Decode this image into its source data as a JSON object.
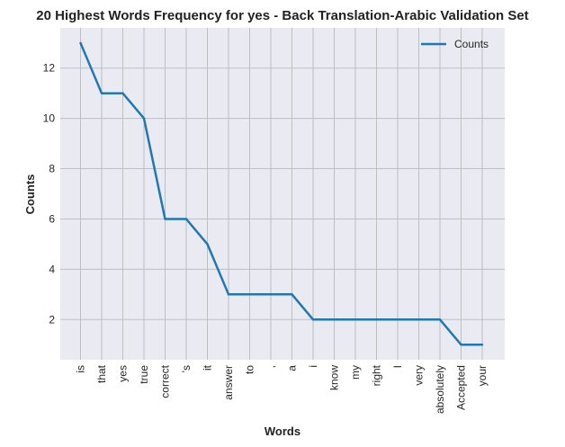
{
  "chart_data": {
    "type": "line",
    "title": "20 Highest Words Frequency for yes - Back Translation-Arabic Validation Set",
    "xlabel": "Words",
    "ylabel": "Counts",
    "categories": [
      "is",
      "that",
      "yes",
      "true",
      "correct",
      "'s",
      "it",
      "answer",
      "to",
      ",",
      "a",
      "i",
      "know",
      "my",
      "right",
      "I",
      "very",
      "absolutely",
      "Accepted",
      "your"
    ],
    "series": [
      {
        "name": "Counts",
        "values": [
          13,
          11,
          11,
          10,
          6,
          6,
          5,
          3,
          3,
          3,
          3,
          2,
          2,
          2,
          2,
          2,
          2,
          2,
          1,
          1
        ]
      }
    ],
    "ylim": [
      0.4,
      13.6
    ],
    "yticks": [
      2,
      4,
      6,
      8,
      10,
      12
    ],
    "grid": true,
    "legend_position": "top-right",
    "colors": {
      "line": "#1f77b4",
      "plot_background": "#eaeaf2",
      "grid": "#bfbfbf"
    }
  }
}
